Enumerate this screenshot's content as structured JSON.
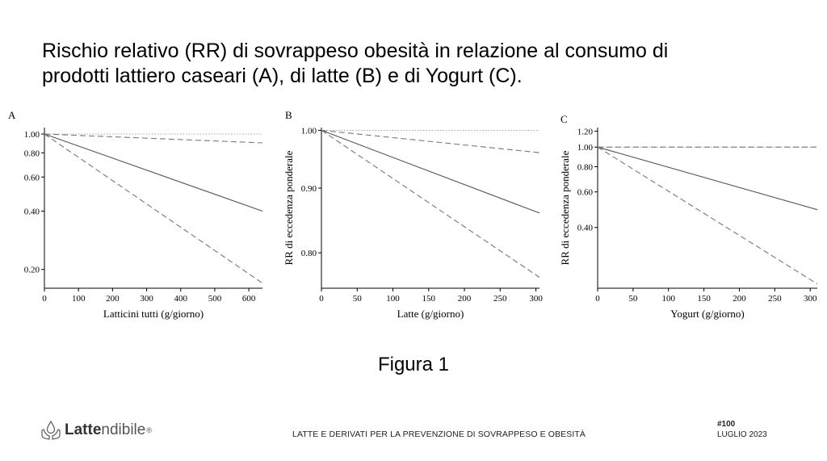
{
  "slide": {
    "title_line1": "Rischio relativo (RR) di sovrappeso obesità in relazione al consumo di",
    "title_line2": "prodotti lattiero caseari (A), di latte (B) e di Yogurt (C).",
    "figure_label": "Figura 1"
  },
  "footer": {
    "brand_strong": "Latte",
    "brand_light": "ndibile",
    "brand_mark": "®",
    "logo_icon": "hands-drop-icon",
    "caption": "LATTE E DERIVATI PER LA PREVENZIONE DI SOVRAPPESO E OBESITÀ",
    "issue_number": "#100",
    "issue_date": "LUGLIO 2023"
  },
  "chart_data": [
    {
      "panel": "A",
      "type": "line",
      "title": "",
      "xlabel": "Latticini tutti (g/giorno)",
      "ylabel": "",
      "scale_y": "log",
      "xlim": [
        0,
        640
      ],
      "ylim": [
        0.16,
        1.08
      ],
      "x_ticks": [
        0,
        100,
        200,
        300,
        400,
        500,
        600
      ],
      "y_ticks": [
        0.2,
        0.4,
        0.6,
        0.8,
        1.0
      ],
      "y_tick_labels": [
        "0.20",
        "0.40",
        "0.60",
        "0.80",
        "1.00"
      ],
      "reference_line": 1.0,
      "series": [
        {
          "style": "solid",
          "x": [
            0,
            640
          ],
          "y": [
            1.0,
            0.4
          ]
        },
        {
          "style": "dashed",
          "x": [
            0,
            640
          ],
          "y": [
            1.0,
            0.9
          ]
        },
        {
          "style": "dashed",
          "x": [
            0,
            640
          ],
          "y": [
            1.0,
            0.17
          ]
        }
      ]
    },
    {
      "panel": "B",
      "type": "line",
      "title": "",
      "xlabel": "Latte (g/giorno)",
      "ylabel": "RR di eccedenza ponderale",
      "scale_y": "log",
      "xlim": [
        0,
        305
      ],
      "ylim": [
        0.75,
        1.005
      ],
      "x_ticks": [
        0,
        50,
        100,
        150,
        200,
        250,
        300
      ],
      "y_ticks": [
        0.8,
        0.9,
        1.0
      ],
      "y_tick_labels": [
        "0.80",
        "0.90",
        "1.00"
      ],
      "reference_line": 1.0,
      "series": [
        {
          "style": "solid",
          "x": [
            0,
            305
          ],
          "y": [
            1.0,
            0.86
          ]
        },
        {
          "style": "dashed",
          "x": [
            0,
            305
          ],
          "y": [
            1.0,
            0.96
          ]
        },
        {
          "style": "dashed",
          "x": [
            0,
            305
          ],
          "y": [
            1.0,
            0.765
          ]
        }
      ]
    },
    {
      "panel": "C",
      "type": "line",
      "title": "",
      "xlabel": "Yogurt (g/giorno)",
      "ylabel": "RR di eccedenza ponderale",
      "scale_y": "log",
      "xlim": [
        0,
        310
      ],
      "ylim": [
        0.2,
        1.25
      ],
      "x_ticks": [
        0,
        50,
        100,
        150,
        200,
        250,
        300
      ],
      "y_ticks": [
        0.4,
        0.6,
        0.8,
        1.0,
        1.2
      ],
      "y_tick_labels": [
        "0.40",
        "0.60",
        "0.80",
        "1.00",
        "1.20"
      ],
      "reference_line": 1.0,
      "series": [
        {
          "style": "solid",
          "x": [
            0,
            310
          ],
          "y": [
            1.0,
            0.49
          ]
        },
        {
          "style": "dashed",
          "x": [
            0,
            310
          ],
          "y": [
            1.0,
            1.0
          ]
        },
        {
          "style": "dashed",
          "x": [
            0,
            310
          ],
          "y": [
            1.0,
            0.21
          ]
        }
      ]
    }
  ]
}
